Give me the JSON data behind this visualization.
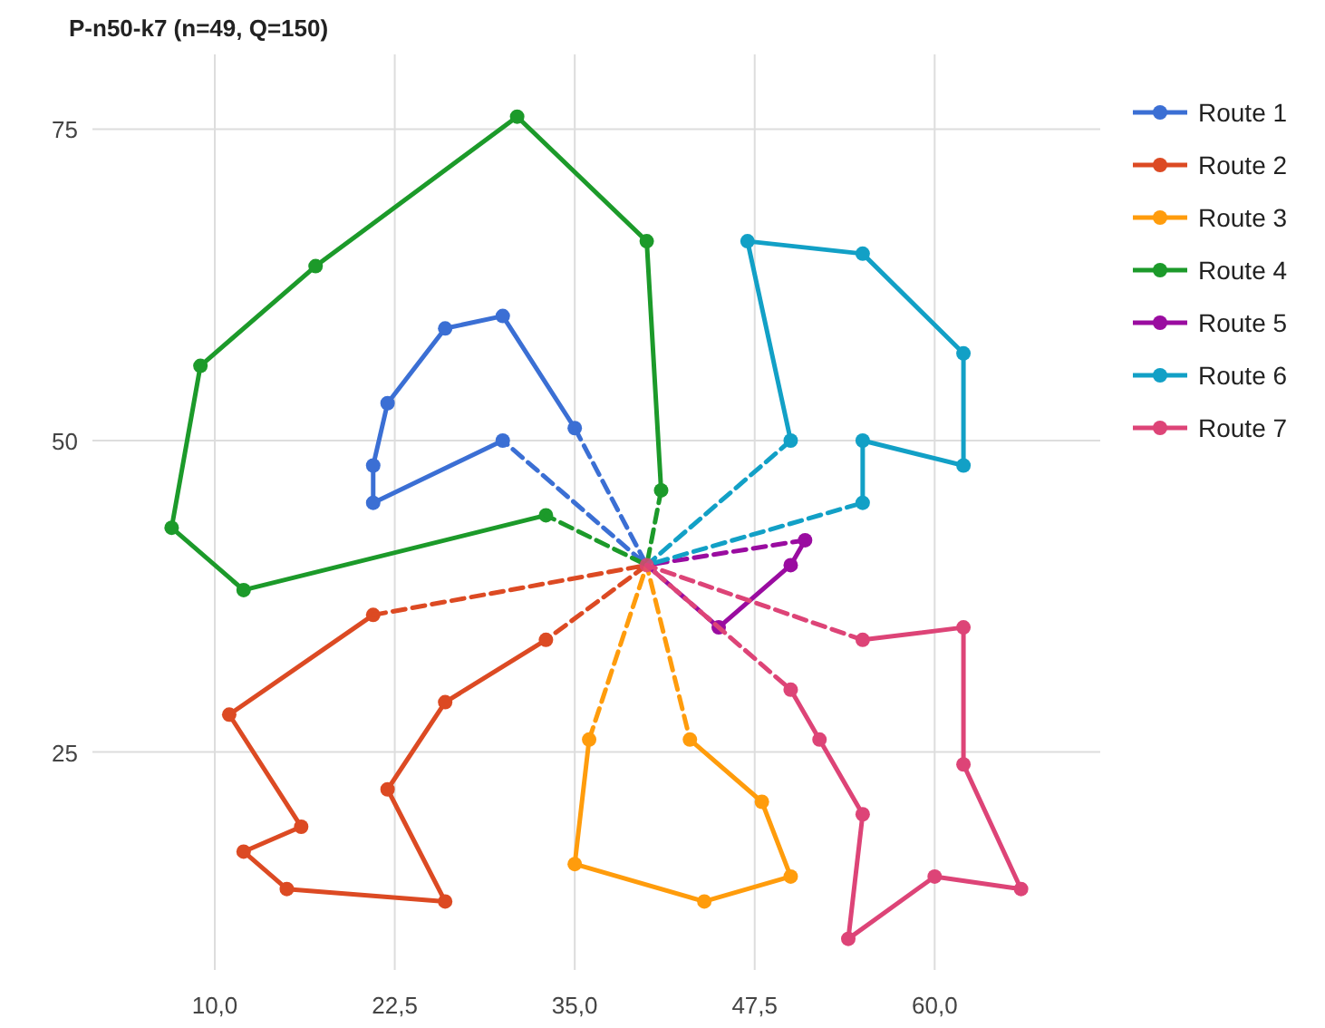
{
  "chart_data": {
    "type": "line",
    "title": "P-n50-k7 (n=49, Q=150)",
    "xlim": [
      1.5,
      71.5
    ],
    "ylim": [
      7.5,
      81
    ],
    "xticks": [
      {
        "value": 10,
        "label": "10,0"
      },
      {
        "value": 22.5,
        "label": "22,5"
      },
      {
        "value": 35,
        "label": "35,0"
      },
      {
        "value": 47.5,
        "label": "47,5"
      },
      {
        "value": 60,
        "label": "60,0"
      }
    ],
    "yticks": [
      25,
      50,
      75
    ],
    "grid": true,
    "legend": "right",
    "series": [
      {
        "name": "Route 1",
        "color": "#3b6fd4",
        "marker": "circle",
        "line_style": "solid",
        "x": [
          35,
          30,
          26,
          22,
          21,
          21,
          30
        ],
        "values": [
          51,
          60,
          59,
          53,
          48,
          45,
          50
        ]
      },
      {
        "name": "Route 2",
        "color": "#dc4a23",
        "marker": "circle",
        "line_style": "solid",
        "x": [
          21,
          11,
          16,
          12,
          15,
          26,
          22,
          26,
          33
        ],
        "values": [
          36,
          28,
          19,
          17,
          14,
          13,
          22,
          29,
          34
        ]
      },
      {
        "name": "Route 3",
        "color": "#ff9c0c",
        "marker": "circle",
        "line_style": "solid",
        "x": [
          36,
          35,
          44,
          50,
          48,
          43
        ],
        "values": [
          26,
          16,
          13,
          15,
          21,
          26
        ]
      },
      {
        "name": "Route 4",
        "color": "#1c9a2a",
        "marker": "circle",
        "line_style": "solid",
        "x": [
          41,
          40,
          31,
          17,
          9,
          7,
          12,
          33
        ],
        "values": [
          46,
          66,
          76,
          64,
          56,
          43,
          38,
          44
        ]
      },
      {
        "name": "Route 5",
        "color": "#9a0ca0",
        "marker": "circle",
        "line_style": "solid",
        "x": [
          51,
          50,
          45
        ],
        "values": [
          42,
          40,
          35
        ]
      },
      {
        "name": "Route 6",
        "color": "#12a0c6",
        "marker": "circle",
        "line_style": "solid",
        "x": [
          50,
          47,
          55,
          62,
          62,
          55,
          55
        ],
        "values": [
          50,
          66,
          65,
          57,
          48,
          50,
          45
        ]
      },
      {
        "name": "Route 7",
        "color": "#dd4477",
        "marker": "circle",
        "line_style": "solid",
        "x": [
          55,
          62,
          62,
          66,
          60,
          54,
          55,
          52,
          50
        ],
        "values": [
          34,
          35,
          24,
          14,
          15,
          10,
          20,
          26,
          30
        ]
      },
      {
        "color": "#3b6fd4",
        "marker": "none",
        "line_style": "dashed",
        "x": [
          35,
          40,
          30
        ],
        "values": [
          51,
          40,
          50
        ]
      },
      {
        "color": "#dc4a23",
        "marker": "none",
        "line_style": "dashed",
        "x": [
          21,
          40,
          33
        ],
        "values": [
          36,
          40,
          34
        ]
      },
      {
        "color": "#ff9c0c",
        "marker": "none",
        "line_style": "dashed",
        "x": [
          36,
          40,
          43
        ],
        "values": [
          26,
          40,
          26
        ]
      },
      {
        "color": "#1c9a2a",
        "marker": "none",
        "line_style": "dashed",
        "x": [
          41,
          40,
          33
        ],
        "values": [
          46,
          40,
          44
        ]
      },
      {
        "color": "#9a0ca0",
        "marker": "none",
        "line_style": "dashed",
        "x": [
          51,
          40,
          45
        ],
        "values": [
          42,
          40,
          35
        ]
      },
      {
        "color": "#12a0c6",
        "marker": "none",
        "line_style": "dashed",
        "x": [
          50,
          40,
          55
        ],
        "values": [
          50,
          40,
          45
        ]
      },
      {
        "color": "#dd4477",
        "marker": "none",
        "line_style": "dashed",
        "x": [
          55,
          40,
          50
        ],
        "values": [
          34,
          40,
          30
        ]
      },
      {
        "type": "scatter",
        "color": "#dd4477",
        "marker": "circle",
        "x": [
          40
        ],
        "values": [
          40
        ]
      }
    ]
  }
}
